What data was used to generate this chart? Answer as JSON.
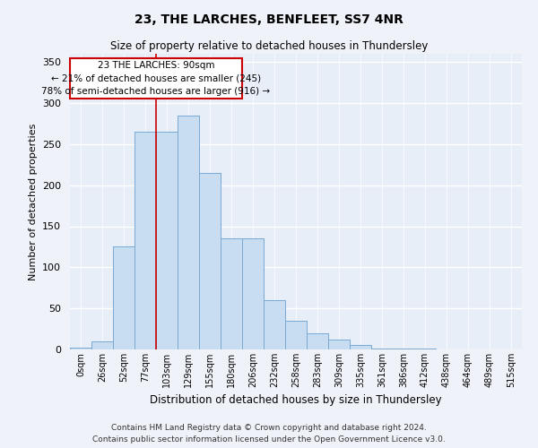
{
  "title": "23, THE LARCHES, BENFLEET, SS7 4NR",
  "subtitle": "Size of property relative to detached houses in Thundersley",
  "xlabel": "Distribution of detached houses by size in Thundersley",
  "ylabel": "Number of detached properties",
  "bar_color": "#c9ddf2",
  "bar_edge_color": "#7aaad4",
  "background_color": "#e8eef8",
  "grid_color": "#ffffff",
  "annotation_box_color": "#ffffff",
  "annotation_box_edge": "#cc0000",
  "vline_color": "#cc0000",
  "annotation_text": "23 THE LARCHES: 90sqm\n← 21% of detached houses are smaller (245)\n78% of semi-detached houses are larger (916) →",
  "footer_line1": "Contains HM Land Registry data © Crown copyright and database right 2024.",
  "footer_line2": "Contains public sector information licensed under the Open Government Licence v3.0.",
  "bin_labels": [
    "0sqm",
    "26sqm",
    "52sqm",
    "77sqm",
    "103sqm",
    "129sqm",
    "155sqm",
    "180sqm",
    "206sqm",
    "232sqm",
    "258sqm",
    "283sqm",
    "309sqm",
    "335sqm",
    "361sqm",
    "386sqm",
    "412sqm",
    "438sqm",
    "464sqm",
    "489sqm",
    "515sqm"
  ],
  "bar_heights": [
    2,
    10,
    125,
    265,
    265,
    285,
    215,
    135,
    135,
    60,
    35,
    20,
    12,
    5,
    1,
    1,
    1,
    0,
    0,
    0,
    0
  ],
  "vline_x": 3.5,
  "ylim": [
    0,
    360
  ],
  "yticks": [
    0,
    50,
    100,
    150,
    200,
    250,
    300,
    350
  ]
}
